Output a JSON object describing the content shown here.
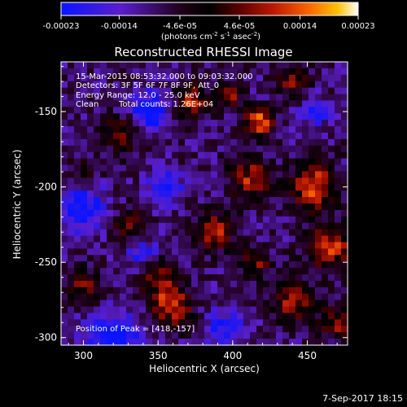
{
  "chart_data": {
    "type": "heatmap",
    "title": "Reconstructed RHESSI Image",
    "xlabel": "Heliocentric X (arcsec)",
    "ylabel": "Heliocentric Y (arcsec)",
    "xlim": [
      285,
      477
    ],
    "ylim": [
      -305,
      -117
    ],
    "xticks": [
      300,
      350,
      400,
      450
    ],
    "yticks": [
      -150,
      -200,
      -250,
      -300
    ],
    "colorbar": {
      "min": -0.00023,
      "max": 0.00023,
      "ticks": [
        "-0.00023",
        "-0.00014",
        "-4.6e-05",
        "4.6e-05",
        "0.00014",
        "0.00023"
      ],
      "tick_values": [
        -0.00023,
        -0.00014,
        -4.6e-05,
        4.6e-05,
        0.00014,
        0.00023
      ],
      "unit_label": "(photons cm",
      "unit_sup1": "-2",
      "unit_mid": " s",
      "unit_sup2": "-1",
      "unit_mid2": " asec",
      "unit_sup3": "-2",
      "unit_end": ")",
      "colors": [
        "#0a14ff",
        "#5a1ecc",
        "#22001a",
        "#000000",
        "#5a0000",
        "#c01a00",
        "#ff6a00",
        "#ffc000",
        "#ffffff"
      ]
    },
    "annotations": [
      "15-Mar-2015 08:53:32.000 to 09:03:32.000",
      "Detectors: 3F 5F 6F 7F 8F 9F, Att_0",
      "Energy Range: 12.0 - 25.0 keV",
      "Clean",
      "Total counts: 1.26E+04"
    ],
    "peak_label": "Position of Peak = [418,-157]",
    "peak": [
      418,
      -157
    ],
    "timestamp": "7-Sep-2017 18:15",
    "hotspots": [
      {
        "x": 418,
        "y": -157,
        "a": 1.0,
        "r": 7
      },
      {
        "x": 455,
        "y": -200,
        "a": 0.95,
        "r": 11
      },
      {
        "x": 465,
        "y": -240,
        "a": 0.9,
        "r": 10
      },
      {
        "x": 372,
        "y": -143,
        "a": 0.85,
        "r": 8
      },
      {
        "x": 412,
        "y": -195,
        "a": 0.75,
        "r": 10
      },
      {
        "x": 388,
        "y": -230,
        "a": 0.75,
        "r": 9
      },
      {
        "x": 350,
        "y": -260,
        "a": 0.7,
        "r": 10
      },
      {
        "x": 360,
        "y": -280,
        "a": 0.85,
        "r": 9
      },
      {
        "x": 440,
        "y": -275,
        "a": 0.7,
        "r": 10
      },
      {
        "x": 330,
        "y": -225,
        "a": 0.55,
        "r": 8
      },
      {
        "x": 325,
        "y": -165,
        "a": 0.55,
        "r": 9
      },
      {
        "x": 440,
        "y": -130,
        "a": 0.55,
        "r": 8
      },
      {
        "x": 398,
        "y": -140,
        "a": 0.6,
        "r": 6
      },
      {
        "x": 470,
        "y": -290,
        "a": 0.65,
        "r": 8
      },
      {
        "x": 300,
        "y": -265,
        "a": 0.55,
        "r": 8
      },
      {
        "x": 300,
        "y": -190,
        "a": 0.45,
        "r": 7
      },
      {
        "x": 415,
        "y": -250,
        "a": 0.6,
        "r": 7
      }
    ],
    "coldspots": [
      {
        "x": 345,
        "y": -150,
        "a": -0.85,
        "r": 9
      },
      {
        "x": 300,
        "y": -215,
        "a": -0.7,
        "r": 11
      },
      {
        "x": 320,
        "y": -300,
        "a": -0.8,
        "r": 12
      },
      {
        "x": 395,
        "y": -295,
        "a": -0.55,
        "r": 9
      },
      {
        "x": 355,
        "y": -200,
        "a": -0.6,
        "r": 8
      },
      {
        "x": 340,
        "y": -245,
        "a": -0.55,
        "r": 8
      },
      {
        "x": 455,
        "y": -150,
        "a": -0.5,
        "r": 7
      }
    ]
  }
}
